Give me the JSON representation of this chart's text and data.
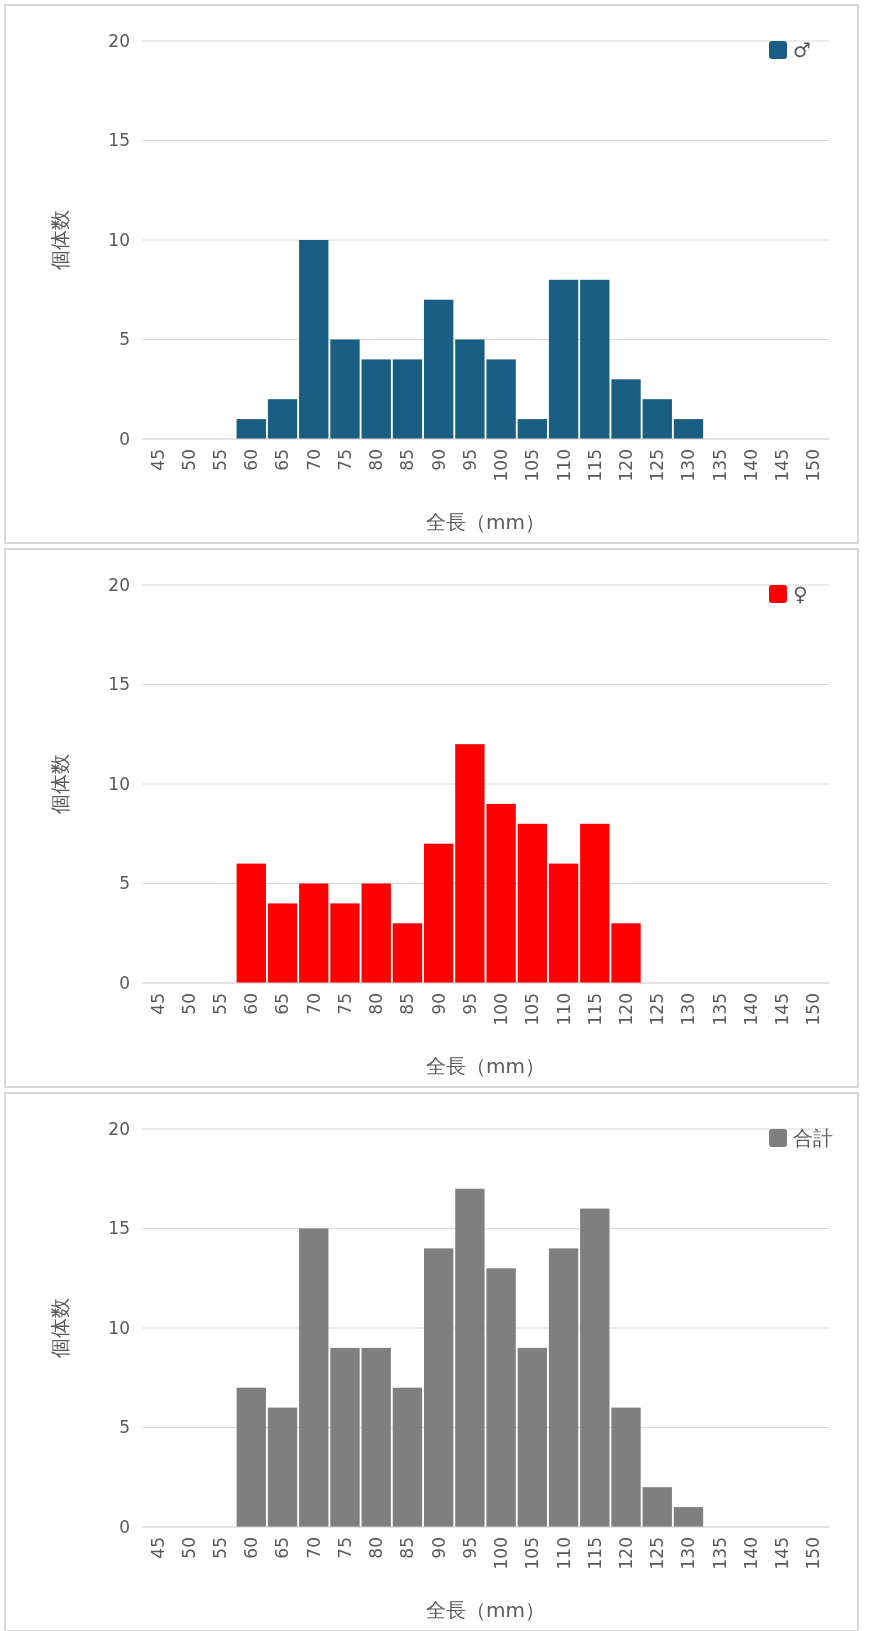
{
  "chart_data": [
    {
      "type": "bar",
      "xlabel": "全長（mm）",
      "ylabel": "個体数",
      "categories": [
        "45",
        "50",
        "55",
        "60",
        "65",
        "70",
        "75",
        "80",
        "85",
        "90",
        "95",
        "100",
        "105",
        "110",
        "115",
        "120",
        "125",
        "130",
        "135",
        "140",
        "145",
        "150"
      ],
      "series": [
        {
          "name": "♂",
          "color": "#1a5e83",
          "values": [
            0,
            0,
            0,
            1,
            2,
            10,
            5,
            4,
            4,
            7,
            5,
            4,
            1,
            8,
            8,
            3,
            2,
            1,
            0,
            0,
            0,
            0
          ]
        }
      ],
      "ylim": [
        0,
        20
      ],
      "yticks": [
        0,
        5,
        10,
        15,
        20
      ],
      "grid": "y",
      "legend": "top right"
    },
    {
      "type": "bar",
      "xlabel": "全長（mm）",
      "ylabel": "個体数",
      "categories": [
        "45",
        "50",
        "55",
        "60",
        "65",
        "70",
        "75",
        "80",
        "85",
        "90",
        "95",
        "100",
        "105",
        "110",
        "115",
        "120",
        "125",
        "130",
        "135",
        "140",
        "145",
        "150"
      ],
      "series": [
        {
          "name": "♀",
          "color": "#ff0000",
          "values": [
            0,
            0,
            0,
            6,
            4,
            5,
            4,
            5,
            3,
            7,
            12,
            9,
            8,
            6,
            8,
            3,
            0,
            0,
            0,
            0,
            0,
            0
          ]
        }
      ],
      "ylim": [
        0,
        20
      ],
      "yticks": [
        0,
        5,
        10,
        15,
        20
      ],
      "grid": "y",
      "legend": "top right"
    },
    {
      "type": "bar",
      "xlabel": "全長（mm）",
      "ylabel": "個体数",
      "categories": [
        "45",
        "50",
        "55",
        "60",
        "65",
        "70",
        "75",
        "80",
        "85",
        "90",
        "95",
        "100",
        "105",
        "110",
        "115",
        "120",
        "125",
        "130",
        "135",
        "140",
        "145",
        "150"
      ],
      "series": [
        {
          "name": "合計",
          "color": "#7f7f7f",
          "values": [
            0,
            0,
            0,
            7,
            6,
            15,
            9,
            9,
            7,
            14,
            17,
            13,
            9,
            14,
            16,
            6,
            2,
            1,
            0,
            0,
            0,
            0
          ]
        }
      ],
      "ylim": [
        0,
        20
      ],
      "yticks": [
        0,
        5,
        10,
        15,
        20
      ],
      "grid": "y",
      "legend": "top right"
    }
  ]
}
